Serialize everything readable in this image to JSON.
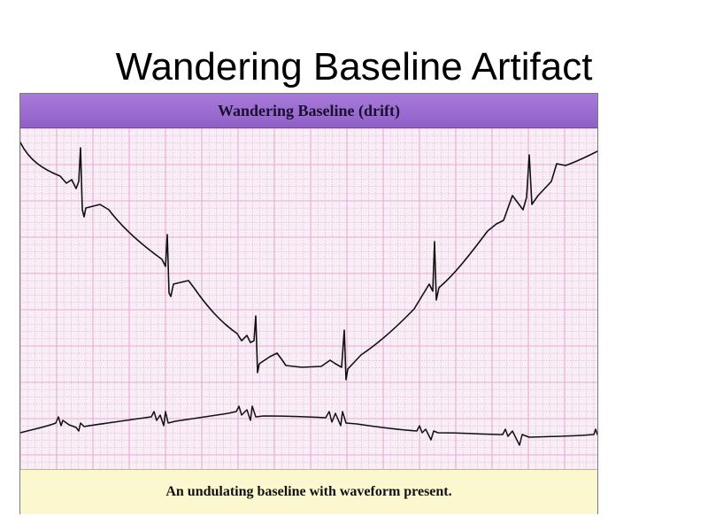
{
  "slide": {
    "title": "Wandering Baseline Artifact"
  },
  "figure": {
    "header": "Wandering Baseline (drift)",
    "caption": "An undulating baseline with waveform present."
  },
  "colors": {
    "header_purple": "#9a6bd0",
    "caption_yellow": "#fbf7cf",
    "grid_pink": "#e8a9d6",
    "trace_black": "#111111"
  }
}
